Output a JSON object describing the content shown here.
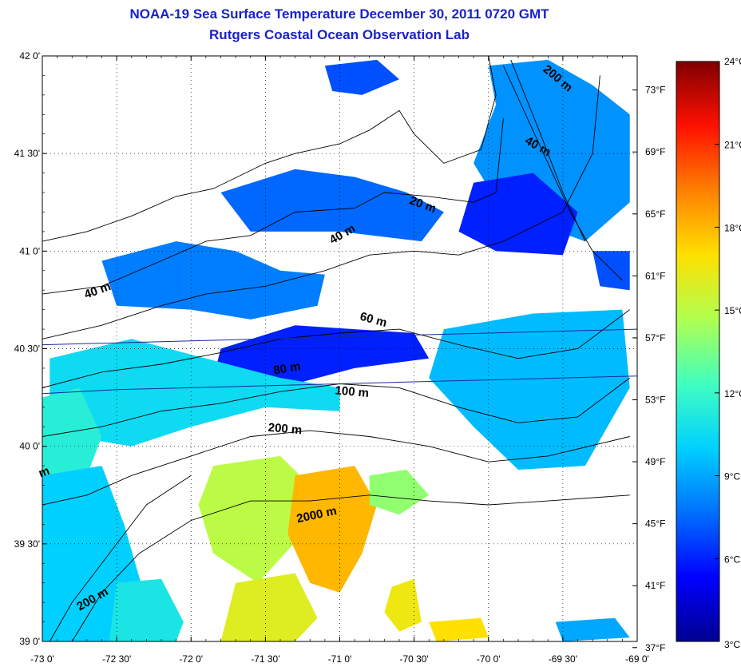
{
  "title": "NOAA-19 Sea Surface Temperature December 30, 2011 0720 GMT",
  "subtitle": "Rutgers Coastal Ocean Observation Lab",
  "map": {
    "lon_range": [
      -73,
      -69
    ],
    "lat_range": [
      39,
      42
    ],
    "lon_ticks": [
      {
        "value": -73.0,
        "label": "-73 0'"
      },
      {
        "value": -72.5,
        "label": "-72 30'"
      },
      {
        "value": -72.0,
        "label": "-72 0'"
      },
      {
        "value": -71.5,
        "label": "-71 30'"
      },
      {
        "value": -71.0,
        "label": "-71 0'"
      },
      {
        "value": -70.5,
        "label": "-70 30'"
      },
      {
        "value": -70.0,
        "label": "-70 0'"
      },
      {
        "value": -69.5,
        "label": "-69 30'"
      },
      {
        "value": -69.0,
        "label": "-69 0'"
      }
    ],
    "lat_ticks": [
      {
        "value": 42.0,
        "label": "42 0'"
      },
      {
        "value": 41.5,
        "label": "41 30'"
      },
      {
        "value": 41.0,
        "label": "41 0'"
      },
      {
        "value": 40.5,
        "label": "40 30'"
      },
      {
        "value": 40.0,
        "label": "40 0'"
      },
      {
        "value": 39.5,
        "label": "39 30'"
      },
      {
        "value": 39.0,
        "label": "39 0'"
      }
    ],
    "fahrenheit_ticks": [
      {
        "value": 73,
        "label": "73°F"
      },
      {
        "value": 69,
        "label": "69°F"
      },
      {
        "value": 65,
        "label": "65°F"
      },
      {
        "value": 61,
        "label": "61°F"
      },
      {
        "value": 57,
        "label": "57°F"
      },
      {
        "value": 53,
        "label": "53°F"
      },
      {
        "value": 49,
        "label": "49°F"
      },
      {
        "value": 45,
        "label": "45°F"
      },
      {
        "value": 41,
        "label": "41°F"
      },
      {
        "value": 37,
        "label": "37°F"
      }
    ],
    "contour_labels": [
      {
        "text": "200 m",
        "lon": -69.55,
        "lat": 41.87,
        "angle": 40
      },
      {
        "text": "40 m",
        "lon": -69.68,
        "lat": 41.52,
        "angle": 30
      },
      {
        "text": "20 m",
        "lon": -70.45,
        "lat": 41.22,
        "angle": 20
      },
      {
        "text": "40 m",
        "lon": -70.97,
        "lat": 41.07,
        "angle": -30
      },
      {
        "text": "40 m",
        "lon": -72.62,
        "lat": 40.78,
        "angle": -20
      },
      {
        "text": "60 m",
        "lon": -70.78,
        "lat": 40.63,
        "angle": 15
      },
      {
        "text": "80 m",
        "lon": -71.35,
        "lat": 40.38,
        "angle": -10
      },
      {
        "text": "100 m",
        "lon": -70.92,
        "lat": 40.26,
        "angle": 5
      },
      {
        "text": "200 m",
        "lon": -71.37,
        "lat": 40.07,
        "angle": 5
      },
      {
        "text": "2000 m",
        "lon": -71.15,
        "lat": 39.63,
        "angle": -12
      },
      {
        "text": "200 m",
        "lon": -72.65,
        "lat": 39.2,
        "angle": -30
      },
      {
        "text": "m",
        "lon": -72.98,
        "lat": 39.85,
        "angle": -20
      }
    ]
  },
  "colorbar": {
    "range_c": [
      3,
      24
    ],
    "labels": [
      {
        "value": 24,
        "label": "24°C"
      },
      {
        "value": 21,
        "label": "21°C"
      },
      {
        "value": 18,
        "label": "18°C"
      },
      {
        "value": 15,
        "label": "15°C"
      },
      {
        "value": 12,
        "label": "12°C"
      },
      {
        "value": 9,
        "label": "9°C"
      },
      {
        "value": 6,
        "label": "6°C"
      },
      {
        "value": 3,
        "label": "3°C"
      }
    ],
    "colors": [
      "#000090",
      "#0000ff",
      "#0070ff",
      "#00d0ff",
      "#40ffc0",
      "#b0ff50",
      "#ffe000",
      "#ff8000",
      "#ff1000",
      "#800000"
    ]
  },
  "sst_patches": [
    {
      "temp": 7.0,
      "pts": [
        [
          -71.1,
          41.95
        ],
        [
          -70.75,
          41.98
        ],
        [
          -70.6,
          41.88
        ],
        [
          -70.85,
          41.8
        ],
        [
          -71.05,
          41.82
        ]
      ]
    },
    {
      "temp": 8.5,
      "pts": [
        [
          -70.0,
          41.95
        ],
        [
          -69.6,
          41.98
        ],
        [
          -69.3,
          41.85
        ],
        [
          -69.05,
          41.7
        ],
        [
          -69.05,
          41.25
        ],
        [
          -69.35,
          41.05
        ],
        [
          -69.9,
          41.2
        ],
        [
          -70.1,
          41.45
        ],
        [
          -69.95,
          41.75
        ]
      ]
    },
    {
      "temp": 6.0,
      "pts": [
        [
          -70.1,
          41.35
        ],
        [
          -69.7,
          41.4
        ],
        [
          -69.4,
          41.2
        ],
        [
          -69.5,
          40.98
        ],
        [
          -69.95,
          41.0
        ],
        [
          -70.2,
          41.1
        ]
      ]
    },
    {
      "temp": 7.5,
      "pts": [
        [
          -71.8,
          41.3
        ],
        [
          -71.3,
          41.42
        ],
        [
          -70.9,
          41.38
        ],
        [
          -70.55,
          41.3
        ],
        [
          -70.3,
          41.2
        ],
        [
          -70.45,
          41.05
        ],
        [
          -71.0,
          41.1
        ],
        [
          -71.6,
          41.1
        ]
      ]
    },
    {
      "temp": 8.0,
      "pts": [
        [
          -72.6,
          40.95
        ],
        [
          -72.1,
          41.05
        ],
        [
          -71.7,
          41.0
        ],
        [
          -71.4,
          40.9
        ],
        [
          -71.1,
          40.88
        ],
        [
          -71.15,
          40.72
        ],
        [
          -71.6,
          40.65
        ],
        [
          -72.0,
          40.7
        ],
        [
          -72.5,
          40.72
        ]
      ]
    },
    {
      "temp": 6.0,
      "pts": [
        [
          -71.8,
          40.5
        ],
        [
          -71.3,
          40.62
        ],
        [
          -70.9,
          40.6
        ],
        [
          -70.5,
          40.58
        ],
        [
          -70.4,
          40.45
        ],
        [
          -70.9,
          40.4
        ],
        [
          -71.4,
          40.3
        ],
        [
          -71.85,
          40.35
        ]
      ]
    },
    {
      "temp": 10.5,
      "pts": [
        [
          -72.95,
          40.45
        ],
        [
          -72.4,
          40.55
        ],
        [
          -71.9,
          40.45
        ],
        [
          -71.4,
          40.35
        ],
        [
          -71.0,
          40.3
        ],
        [
          -71.0,
          40.18
        ],
        [
          -71.5,
          40.2
        ],
        [
          -72.0,
          40.1
        ],
        [
          -72.4,
          40.0
        ],
        [
          -72.8,
          40.05
        ],
        [
          -72.95,
          40.2
        ]
      ]
    },
    {
      "temp": 11.5,
      "pts": [
        [
          -73.0,
          40.25
        ],
        [
          -72.75,
          40.3
        ],
        [
          -72.6,
          40.05
        ],
        [
          -72.7,
          39.85
        ],
        [
          -73.0,
          39.8
        ]
      ]
    },
    {
      "temp": 10.0,
      "pts": [
        [
          -73.0,
          39.85
        ],
        [
          -72.6,
          39.9
        ],
        [
          -72.45,
          39.6
        ],
        [
          -72.3,
          39.2
        ],
        [
          -72.35,
          39.0
        ],
        [
          -73.0,
          39.0
        ]
      ]
    },
    {
      "temp": 9.5,
      "pts": [
        [
          -70.3,
          40.6
        ],
        [
          -69.7,
          40.68
        ],
        [
          -69.1,
          40.7
        ],
        [
          -69.05,
          40.3
        ],
        [
          -69.35,
          39.9
        ],
        [
          -69.8,
          39.88
        ],
        [
          -70.1,
          40.1
        ],
        [
          -70.4,
          40.35
        ]
      ]
    },
    {
      "temp": 7.0,
      "pts": [
        [
          -69.3,
          41.0
        ],
        [
          -69.05,
          41.0
        ],
        [
          -69.05,
          40.8
        ],
        [
          -69.25,
          40.82
        ]
      ]
    },
    {
      "temp": 15.0,
      "pts": [
        [
          -71.85,
          39.9
        ],
        [
          -71.4,
          39.95
        ],
        [
          -71.2,
          39.8
        ],
        [
          -71.25,
          39.55
        ],
        [
          -71.55,
          39.3
        ],
        [
          -71.85,
          39.45
        ],
        [
          -71.95,
          39.7
        ]
      ]
    },
    {
      "temp": 18.0,
      "pts": [
        [
          -71.3,
          39.85
        ],
        [
          -70.9,
          39.9
        ],
        [
          -70.75,
          39.7
        ],
        [
          -70.85,
          39.45
        ],
        [
          -71.0,
          39.25
        ],
        [
          -71.2,
          39.3
        ],
        [
          -71.35,
          39.55
        ]
      ]
    },
    {
      "temp": 16.0,
      "pts": [
        [
          -71.7,
          39.3
        ],
        [
          -71.3,
          39.35
        ],
        [
          -71.15,
          39.12
        ],
        [
          -71.3,
          39.0
        ],
        [
          -71.8,
          39.0
        ]
      ]
    },
    {
      "temp": 14.0,
      "pts": [
        [
          -70.8,
          39.85
        ],
        [
          -70.55,
          39.88
        ],
        [
          -70.4,
          39.75
        ],
        [
          -70.6,
          39.65
        ],
        [
          -70.8,
          39.7
        ]
      ]
    },
    {
      "temp": 16.5,
      "pts": [
        [
          -70.65,
          39.28
        ],
        [
          -70.5,
          39.32
        ],
        [
          -70.45,
          39.1
        ],
        [
          -70.6,
          39.05
        ],
        [
          -70.7,
          39.15
        ]
      ]
    },
    {
      "temp": 17.0,
      "pts": [
        [
          -70.4,
          39.1
        ],
        [
          -70.05,
          39.12
        ],
        [
          -70.0,
          39.02
        ],
        [
          -70.35,
          39.0
        ]
      ]
    },
    {
      "temp": 11.0,
      "pts": [
        [
          -72.5,
          39.3
        ],
        [
          -72.2,
          39.32
        ],
        [
          -72.05,
          39.1
        ],
        [
          -72.1,
          39.0
        ],
        [
          -72.55,
          39.0
        ]
      ]
    },
    {
      "temp": 9.0,
      "pts": [
        [
          -69.55,
          39.1
        ],
        [
          -69.15,
          39.12
        ],
        [
          -69.05,
          39.02
        ],
        [
          -69.5,
          39.0
        ]
      ]
    }
  ]
}
